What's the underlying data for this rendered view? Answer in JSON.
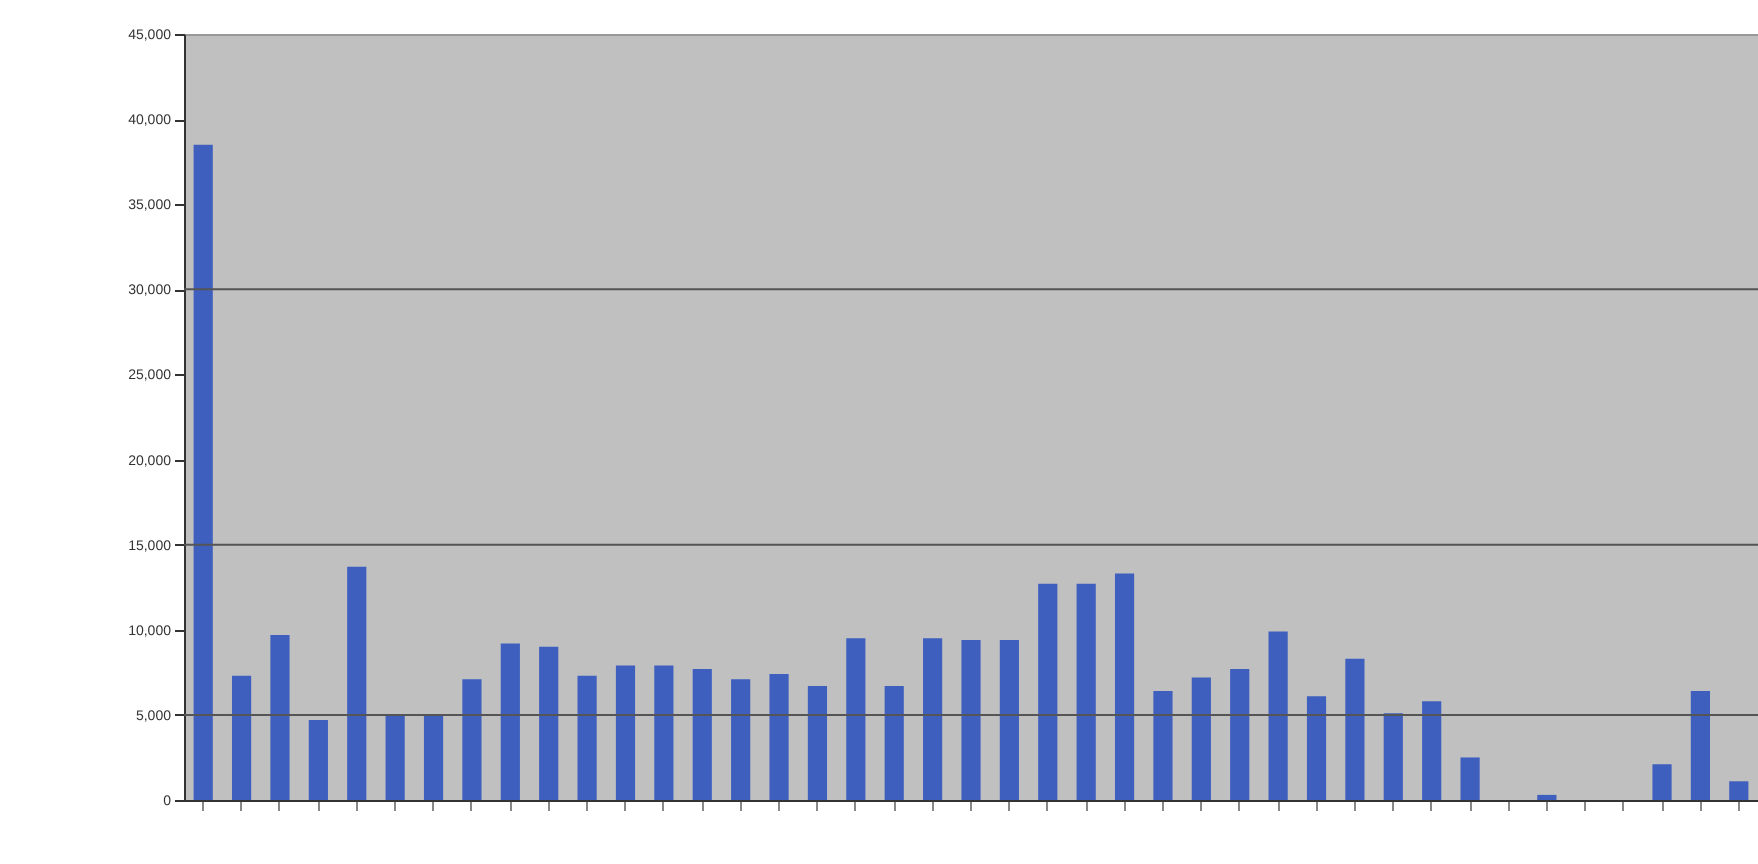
{
  "chart_data": {
    "type": "bar",
    "categories": [
      null,
      null,
      null,
      null,
      null,
      null,
      null,
      null,
      null,
      null,
      null,
      null,
      null,
      null,
      null,
      null,
      null,
      null,
      null,
      null,
      null,
      null,
      null,
      null,
      null,
      null,
      null,
      null,
      null,
      null,
      null,
      null,
      null,
      null,
      null,
      null,
      null,
      null,
      null,
      null,
      null
    ],
    "values": [
      38500,
      7300,
      9700,
      4700,
      13700,
      5000,
      5000,
      7100,
      9200,
      9000,
      7300,
      7900,
      7900,
      7700,
      7100,
      7400,
      6700,
      9500,
      6700,
      9500,
      9400,
      9400,
      12700,
      12700,
      13300,
      6400,
      7200,
      7700,
      9900,
      6100,
      8300,
      5100,
      5800,
      2500,
      0,
      300,
      0,
      0,
      2100,
      6400,
      1100
    ],
    "color": "#3f5fbf",
    "ylim": [
      0,
      45000
    ],
    "yticks": [
      0,
      {
        "value": 5000,
        "label": "5,000"
      },
      {
        "value": 10000,
        "label": "10,000"
      },
      {
        "value": 15000,
        "label": "15,000"
      },
      {
        "value": 20000,
        "label": "20,000"
      },
      {
        "value": 25000,
        "label": "25,000"
      },
      {
        "value": 30000,
        "label": "30,000"
      },
      {
        "value": 35000,
        "label": "35,000"
      },
      {
        "value": 40000,
        "label": "40,000"
      },
      {
        "value": 45000,
        "label": "45,000"
      }
    ],
    "grid": false,
    "tick_labels": "y",
    "ref_lines": [
      {
        "axis": "y",
        "value": 5000,
        "color": "#555555"
      },
      {
        "axis": "y",
        "value": 15000,
        "color": "#555555"
      },
      {
        "axis": "y",
        "value": 30000,
        "color": "#555555"
      }
    ]
  }
}
